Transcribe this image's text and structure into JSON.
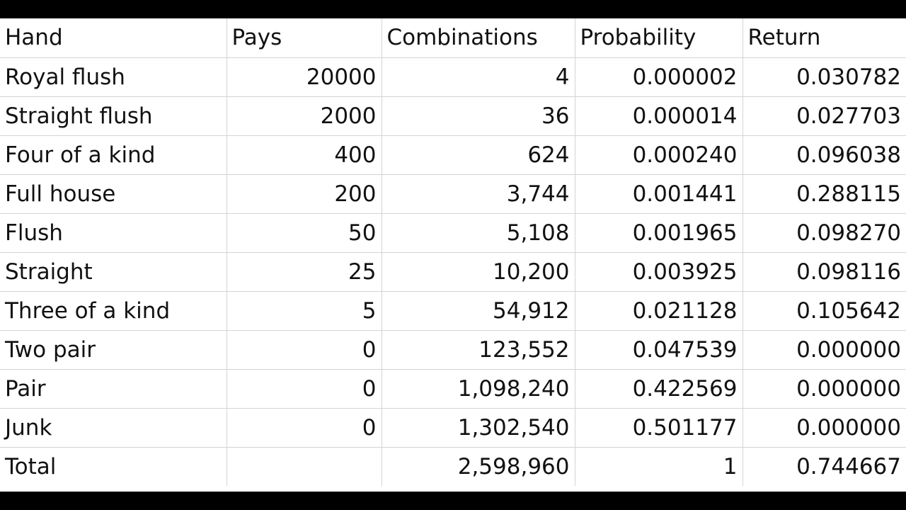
{
  "headers": [
    "Hand",
    "Pays",
    "Combinations",
    "Probability",
    "Return"
  ],
  "rows": [
    {
      "hand": "Royal flush",
      "pays": "20000",
      "combinations": "4",
      "probability": "0.000002",
      "return": "0.030782"
    },
    {
      "hand": "Straight flush",
      "pays": "2000",
      "combinations": "36",
      "probability": "0.000014",
      "return": "0.027703"
    },
    {
      "hand": "Four of a kind",
      "pays": "400",
      "combinations": "624",
      "probability": "0.000240",
      "return": "0.096038"
    },
    {
      "hand": "Full house",
      "pays": "200",
      "combinations": "3,744",
      "probability": "0.001441",
      "return": "0.288115"
    },
    {
      "hand": "Flush",
      "pays": "50",
      "combinations": "5,108",
      "probability": "0.001965",
      "return": "0.098270"
    },
    {
      "hand": "Straight",
      "pays": "25",
      "combinations": "10,200",
      "probability": "0.003925",
      "return": "0.098116"
    },
    {
      "hand": "Three of a kind",
      "pays": "5",
      "combinations": "54,912",
      "probability": "0.021128",
      "return": "0.105642"
    },
    {
      "hand": "Two pair",
      "pays": "0",
      "combinations": "123,552",
      "probability": "0.047539",
      "return": "0.000000"
    },
    {
      "hand": "Pair",
      "pays": "0",
      "combinations": "1,098,240",
      "probability": "0.422569",
      "return": "0.000000"
    },
    {
      "hand": "Junk",
      "pays": "0",
      "combinations": "1,302,540",
      "probability": "0.501177",
      "return": "0.000000"
    }
  ],
  "total": {
    "hand": "Total",
    "pays": "",
    "combinations": "2,598,960",
    "probability": "1",
    "return": "0.744667"
  }
}
